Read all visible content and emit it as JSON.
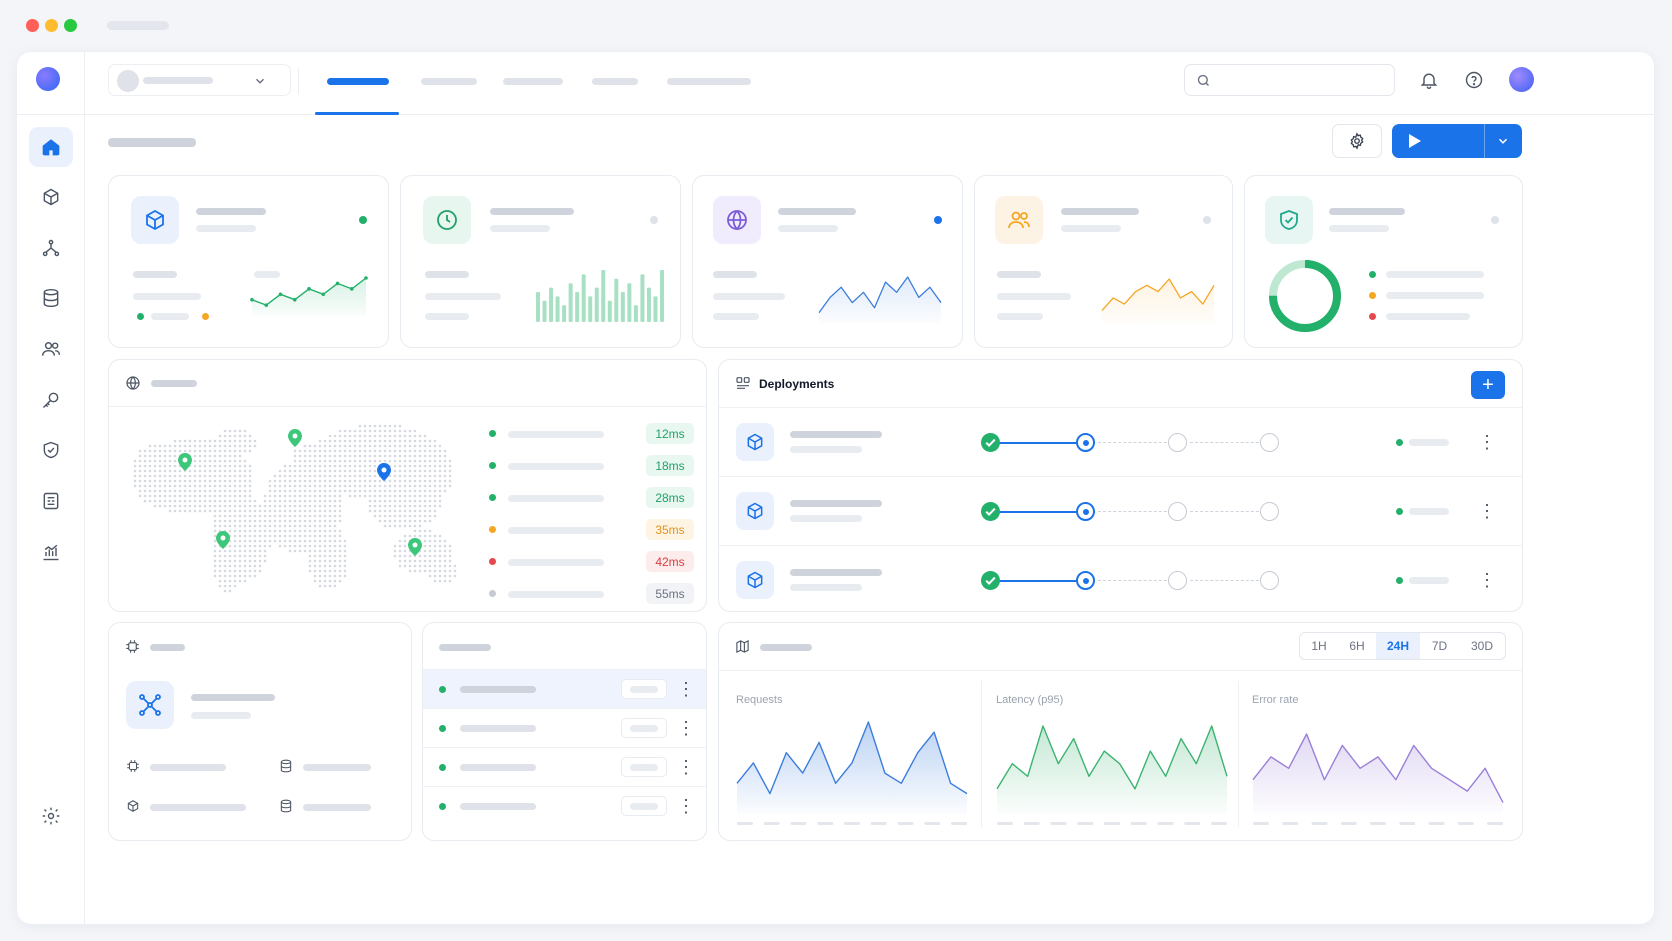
{
  "colors": {
    "accent": "#1a73e8",
    "green": "#22b06b",
    "orange": "#f5a623",
    "red": "#e5484d",
    "purple": "#7c5cd6",
    "window_red": "#ff5f57",
    "window_yellow": "#febc2e",
    "window_green": "#28c840"
  },
  "icons": {
    "sidebar": [
      "home-icon",
      "box-icon",
      "network-icon",
      "database-icon",
      "users-icon",
      "key-icon",
      "shield-icon",
      "report-icon",
      "chart-icon"
    ],
    "sidebar_footer": "gear-icon",
    "header": [
      "search-icon",
      "bell-icon",
      "help-icon"
    ],
    "stat_cards": [
      "box-icon",
      "clock-icon",
      "globe-icon",
      "users-icon",
      "shield-icon"
    ]
  },
  "header": {
    "tabs_active_index": 0
  },
  "deployments": {
    "title": "Deployments",
    "add_label": "+",
    "rows": [
      {
        "progress_step": 2,
        "status": "green"
      },
      {
        "progress_step": 2,
        "status": "green"
      },
      {
        "progress_step": 2,
        "status": "green"
      }
    ]
  },
  "regions": {
    "latencies": [
      {
        "value": "12ms",
        "status": "green"
      },
      {
        "value": "18ms",
        "status": "green"
      },
      {
        "value": "28ms",
        "status": "green"
      },
      {
        "value": "35ms",
        "status": "orange"
      },
      {
        "value": "42ms",
        "status": "red"
      },
      {
        "value": "55ms",
        "status": "gray"
      }
    ]
  },
  "metrics": {
    "ranges": [
      "1H",
      "6H",
      "24H",
      "7D",
      "30D"
    ],
    "active_range": "24H",
    "charts": [
      {
        "label": "Requests",
        "color": "#3b7ddd"
      },
      {
        "label": "Latency (p95)",
        "color": "#3cb371"
      },
      {
        "label": "Error rate",
        "color": "#9b7fd9"
      }
    ]
  },
  "chart_data": [
    {
      "type": "line",
      "series": [
        {
          "values": [
            4,
            3,
            5,
            4,
            6,
            5,
            7,
            6,
            8
          ]
        }
      ]
    },
    {
      "type": "bar",
      "series": [
        {
          "values": [
            5,
            3,
            6,
            4,
            2,
            7,
            5,
            9,
            4,
            6,
            10,
            3,
            8,
            5,
            7,
            2,
            9,
            6,
            4,
            10
          ]
        }
      ]
    },
    {
      "type": "area",
      "series": [
        {
          "values": [
            2,
            5,
            7,
            4,
            6,
            3,
            8,
            6,
            9,
            5,
            7,
            4
          ]
        }
      ]
    },
    {
      "type": "area",
      "series": [
        {
          "values": [
            2,
            4,
            3,
            5,
            6,
            5,
            7,
            4,
            5,
            3,
            6
          ]
        }
      ]
    },
    {
      "type": "pie",
      "values": [
        75,
        25
      ]
    },
    {
      "type": "area",
      "series": [
        {
          "name": "Requests",
          "values": [
            3,
            5,
            2,
            6,
            4,
            7,
            3,
            5,
            9,
            4,
            3,
            6,
            8,
            3,
            2
          ]
        }
      ]
    },
    {
      "type": "area",
      "series": [
        {
          "name": "Latency (p95)",
          "values": [
            2,
            4,
            3,
            7,
            4,
            6,
            3,
            5,
            4,
            2,
            5,
            3,
            6,
            4,
            7,
            3
          ]
        }
      ]
    },
    {
      "type": "area",
      "series": [
        {
          "name": "Error rate",
          "values": [
            3,
            5,
            4,
            7,
            3,
            6,
            4,
            5,
            3,
            6,
            4,
            3,
            2,
            4,
            1
          ]
        }
      ]
    }
  ]
}
